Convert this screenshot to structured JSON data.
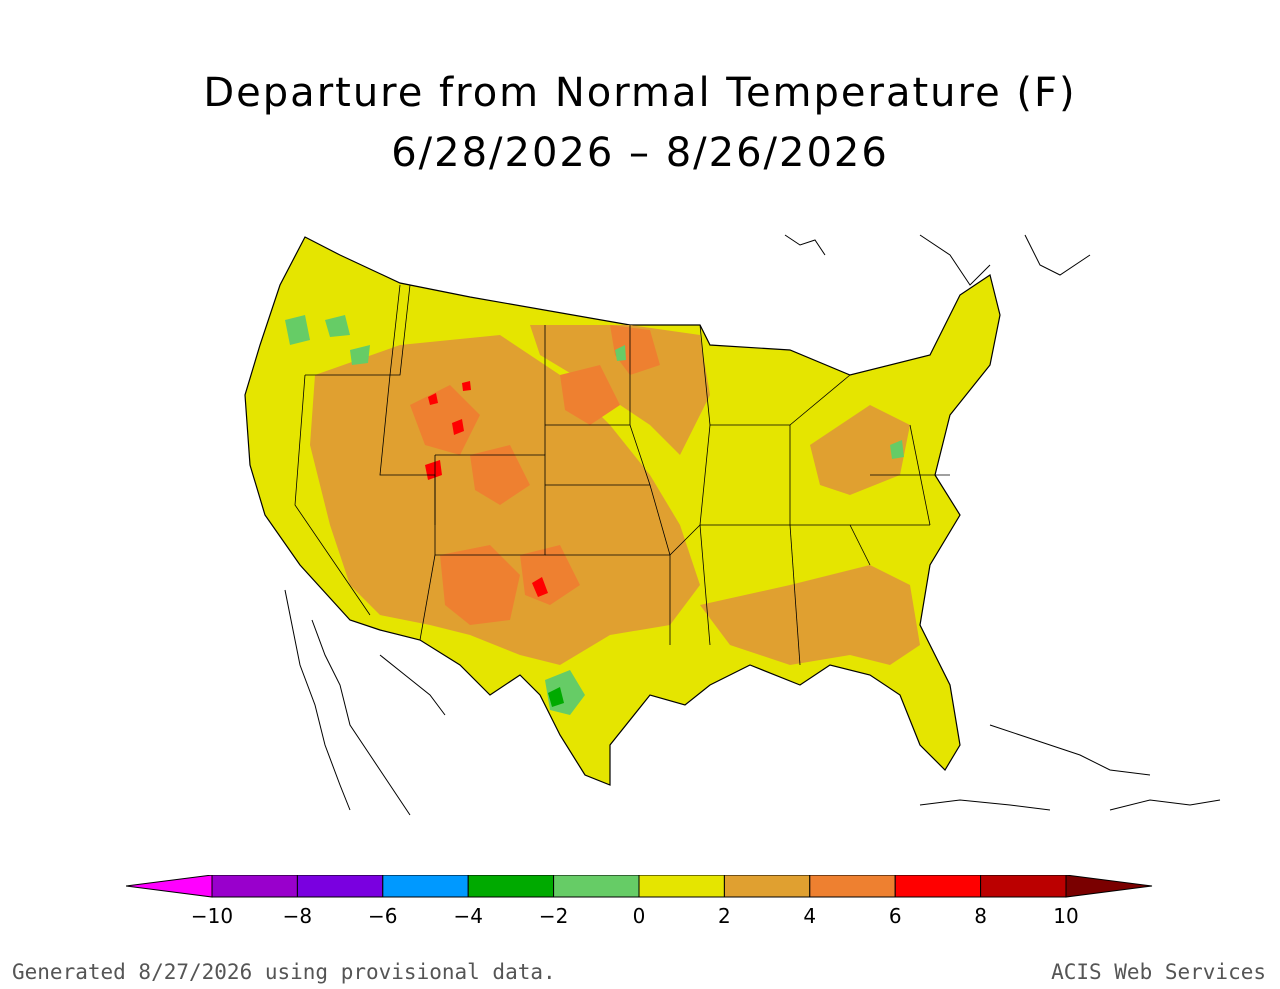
{
  "title": {
    "line1": "Departure from Normal Temperature (F)",
    "line2": "6/28/2026 – 8/26/2026"
  },
  "legend": {
    "colors": [
      "#ff00ff",
      "#9900cc",
      "#7a00e0",
      "#0099ff",
      "#00aa00",
      "#66cc66",
      "#e5e500",
      "#e0a030",
      "#ee8030",
      "#ff0000",
      "#bb0000",
      "#7a0000"
    ],
    "ticks": [
      "−10",
      "−8",
      "−6",
      "−4",
      "−2",
      "0",
      "2",
      "4",
      "6",
      "8",
      "10"
    ]
  },
  "map": {
    "background_color": "#e5e500"
  },
  "footer": {
    "left": "Generated 8/27/2026 using provisional data.",
    "right": "ACIS Web Services"
  }
}
